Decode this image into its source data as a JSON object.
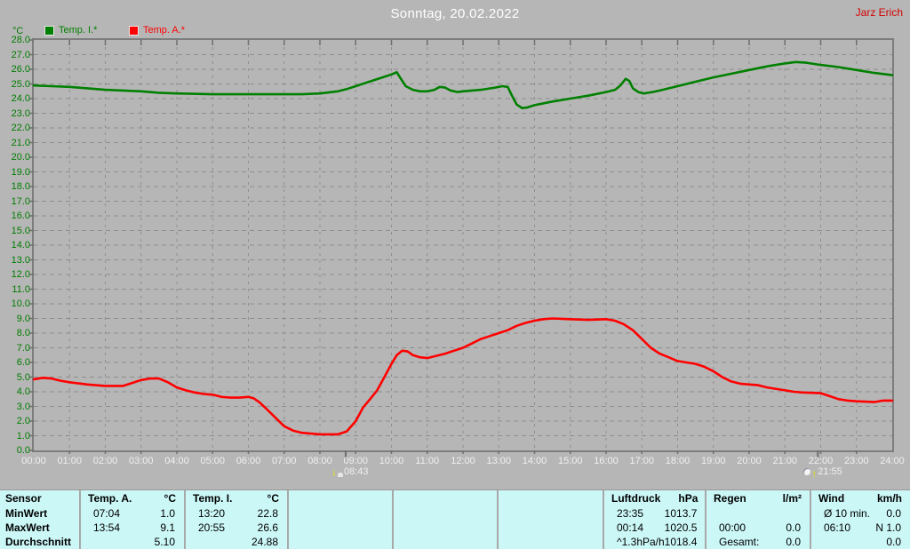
{
  "header": {
    "title": "Sonntag, 20.02.2022",
    "author": "Jarz Erich"
  },
  "colors": {
    "temp_inside": "#008000",
    "temp_outside": "#ff0000",
    "author_red": "#d40000",
    "axis_label_green": "#007c00",
    "table_bg": "#ccf7f7"
  },
  "legend": {
    "y_unit": "°C",
    "items": [
      {
        "label": "Temp. I.*",
        "color": "#008000"
      },
      {
        "label": "Temp. A.*",
        "color": "#ff0000"
      }
    ]
  },
  "chart_data": {
    "type": "line",
    "title": "Sonntag, 20.02.2022",
    "ylabel": "°C",
    "ylim": [
      0,
      28
    ],
    "ytick_step": 1.0,
    "xlim_hours": [
      0,
      24
    ],
    "grid": true,
    "x_tick_labels": [
      "00:00",
      "01:00",
      "02:00",
      "03:00",
      "04:00",
      "05:00",
      "06:00",
      "07:00",
      "08:00",
      "09:00",
      "10:00",
      "11:00",
      "12:00",
      "13:00",
      "14:00",
      "15:00",
      "16:00",
      "17:00",
      "18:00",
      "19:00",
      "20:00",
      "21:00",
      "22:00",
      "23:00",
      "24:00"
    ],
    "series": [
      {
        "name": "Temp. I.*",
        "color": "#008000",
        "points": [
          [
            0,
            24.9
          ],
          [
            0.5,
            24.85
          ],
          [
            1,
            24.8
          ],
          [
            1.5,
            24.7
          ],
          [
            2,
            24.6
          ],
          [
            2.5,
            24.55
          ],
          [
            3,
            24.5
          ],
          [
            3.5,
            24.4
          ],
          [
            4,
            24.35
          ],
          [
            5,
            24.3
          ],
          [
            6,
            24.3
          ],
          [
            7,
            24.3
          ],
          [
            7.5,
            24.3
          ],
          [
            8,
            24.35
          ],
          [
            8.5,
            24.5
          ],
          [
            8.75,
            24.65
          ],
          [
            9,
            24.85
          ],
          [
            9.25,
            25.05
          ],
          [
            9.5,
            25.25
          ],
          [
            9.75,
            25.45
          ],
          [
            10,
            25.65
          ],
          [
            10.15,
            25.8
          ],
          [
            10.25,
            25.4
          ],
          [
            10.4,
            24.85
          ],
          [
            10.6,
            24.6
          ],
          [
            10.8,
            24.5
          ],
          [
            11,
            24.5
          ],
          [
            11.2,
            24.6
          ],
          [
            11.35,
            24.8
          ],
          [
            11.5,
            24.75
          ],
          [
            11.65,
            24.55
          ],
          [
            11.85,
            24.45
          ],
          [
            12,
            24.5
          ],
          [
            12.5,
            24.6
          ],
          [
            12.9,
            24.75
          ],
          [
            13.1,
            24.85
          ],
          [
            13.25,
            24.8
          ],
          [
            13.35,
            24.3
          ],
          [
            13.5,
            23.6
          ],
          [
            13.65,
            23.35
          ],
          [
            13.8,
            23.4
          ],
          [
            14,
            23.55
          ],
          [
            14.5,
            23.8
          ],
          [
            15,
            24.0
          ],
          [
            15.5,
            24.2
          ],
          [
            16,
            24.45
          ],
          [
            16.25,
            24.6
          ],
          [
            16.4,
            24.9
          ],
          [
            16.55,
            25.35
          ],
          [
            16.65,
            25.2
          ],
          [
            16.75,
            24.7
          ],
          [
            16.9,
            24.45
          ],
          [
            17.05,
            24.35
          ],
          [
            17.3,
            24.45
          ],
          [
            17.5,
            24.55
          ],
          [
            18,
            24.85
          ],
          [
            18.5,
            25.15
          ],
          [
            19,
            25.45
          ],
          [
            19.5,
            25.7
          ],
          [
            20,
            25.95
          ],
          [
            20.5,
            26.2
          ],
          [
            21,
            26.4
          ],
          [
            21.3,
            26.5
          ],
          [
            21.6,
            26.45
          ],
          [
            22,
            26.3
          ],
          [
            22.5,
            26.15
          ],
          [
            23,
            25.95
          ],
          [
            23.5,
            25.75
          ],
          [
            24,
            25.6
          ]
        ]
      },
      {
        "name": "Temp. A.*",
        "color": "#ff0000",
        "points": [
          [
            0,
            4.85
          ],
          [
            0.25,
            4.95
          ],
          [
            0.5,
            4.9
          ],
          [
            0.75,
            4.75
          ],
          [
            1,
            4.65
          ],
          [
            1.5,
            4.5
          ],
          [
            2,
            4.4
          ],
          [
            2.5,
            4.4
          ],
          [
            2.75,
            4.6
          ],
          [
            3,
            4.8
          ],
          [
            3.25,
            4.9
          ],
          [
            3.5,
            4.9
          ],
          [
            3.75,
            4.65
          ],
          [
            4,
            4.3
          ],
          [
            4.25,
            4.1
          ],
          [
            4.5,
            3.95
          ],
          [
            4.75,
            3.85
          ],
          [
            5,
            3.8
          ],
          [
            5.25,
            3.65
          ],
          [
            5.5,
            3.6
          ],
          [
            5.75,
            3.6
          ],
          [
            6,
            3.65
          ],
          [
            6.15,
            3.55
          ],
          [
            6.3,
            3.3
          ],
          [
            6.5,
            2.85
          ],
          [
            6.75,
            2.25
          ],
          [
            7,
            1.65
          ],
          [
            7.25,
            1.35
          ],
          [
            7.5,
            1.2
          ],
          [
            8,
            1.1
          ],
          [
            8.5,
            1.1
          ],
          [
            8.75,
            1.3
          ],
          [
            9,
            2.0
          ],
          [
            9.2,
            2.9
          ],
          [
            9.4,
            3.5
          ],
          [
            9.6,
            4.1
          ],
          [
            9.8,
            5.0
          ],
          [
            10,
            5.9
          ],
          [
            10.15,
            6.5
          ],
          [
            10.3,
            6.8
          ],
          [
            10.45,
            6.75
          ],
          [
            10.6,
            6.5
          ],
          [
            10.8,
            6.35
          ],
          [
            11,
            6.3
          ],
          [
            11.25,
            6.45
          ],
          [
            11.5,
            6.6
          ],
          [
            11.75,
            6.8
          ],
          [
            12,
            7.0
          ],
          [
            12.25,
            7.3
          ],
          [
            12.5,
            7.6
          ],
          [
            12.75,
            7.8
          ],
          [
            13,
            8.0
          ],
          [
            13.25,
            8.2
          ],
          [
            13.5,
            8.5
          ],
          [
            13.75,
            8.7
          ],
          [
            14,
            8.85
          ],
          [
            14.25,
            8.95
          ],
          [
            14.5,
            9.0
          ],
          [
            15,
            8.95
          ],
          [
            15.5,
            8.9
          ],
          [
            16,
            8.95
          ],
          [
            16.25,
            8.85
          ],
          [
            16.5,
            8.6
          ],
          [
            16.75,
            8.2
          ],
          [
            17,
            7.6
          ],
          [
            17.25,
            7.0
          ],
          [
            17.5,
            6.6
          ],
          [
            17.75,
            6.35
          ],
          [
            18,
            6.1
          ],
          [
            18.5,
            5.9
          ],
          [
            18.75,
            5.7
          ],
          [
            19,
            5.4
          ],
          [
            19.25,
            5.0
          ],
          [
            19.5,
            4.7
          ],
          [
            19.75,
            4.55
          ],
          [
            20,
            4.5
          ],
          [
            20.25,
            4.45
          ],
          [
            20.5,
            4.3
          ],
          [
            21,
            4.1
          ],
          [
            21.25,
            4.0
          ],
          [
            21.5,
            3.95
          ],
          [
            22,
            3.9
          ],
          [
            22.25,
            3.7
          ],
          [
            22.5,
            3.5
          ],
          [
            22.75,
            3.4
          ],
          [
            23,
            3.35
          ],
          [
            23.5,
            3.3
          ],
          [
            23.75,
            3.4
          ],
          [
            24,
            3.4
          ]
        ]
      }
    ],
    "time_markers": [
      {
        "label": "08:43",
        "hour": 8.72,
        "icon": "sun-down"
      },
      {
        "label": "21:55",
        "hour": 21.92,
        "icon": "moon-up"
      }
    ]
  },
  "table": {
    "row_labels": [
      "Sensor",
      "MinWert",
      "MaxWert",
      "Durchschnitt"
    ],
    "columns": [
      {
        "name": "Temp. A.",
        "unit": "°C",
        "rows": [
          [
            "07:04",
            "1.0"
          ],
          [
            "13:54",
            "9.1"
          ],
          [
            "",
            "5.10"
          ]
        ]
      },
      {
        "name": "Temp. I.",
        "unit": "°C",
        "rows": [
          [
            "13:20",
            "22.8"
          ],
          [
            "20:55",
            "26.6"
          ],
          [
            "",
            "24.88"
          ]
        ]
      },
      {
        "name": "",
        "unit": "",
        "rows": [
          [
            "",
            ""
          ],
          [
            "",
            ""
          ],
          [
            "",
            ""
          ]
        ]
      },
      {
        "name": "",
        "unit": "",
        "rows": [
          [
            "",
            ""
          ],
          [
            "",
            ""
          ],
          [
            "",
            ""
          ]
        ]
      },
      {
        "name": "",
        "unit": "",
        "rows": [
          [
            "",
            ""
          ],
          [
            "",
            ""
          ],
          [
            "",
            ""
          ]
        ]
      },
      {
        "name": "Luftdruck",
        "unit": "hPa",
        "rows": [
          [
            "23:35",
            "1013.7"
          ],
          [
            "00:14",
            "1020.5"
          ],
          [
            "^1.3hPa/h",
            "1018.4"
          ]
        ]
      },
      {
        "name": "Regen",
        "unit": "l/m²",
        "rows": [
          [
            "",
            ""
          ],
          [
            "00:00",
            "0.0"
          ],
          [
            "Gesamt:",
            "0.0"
          ]
        ]
      },
      {
        "name": "Wind",
        "unit": "km/h",
        "rows": [
          [
            "Ø 10 min.",
            "0.0"
          ],
          [
            "06:10",
            "N 1.0"
          ],
          [
            "",
            "0.0"
          ]
        ]
      }
    ]
  }
}
